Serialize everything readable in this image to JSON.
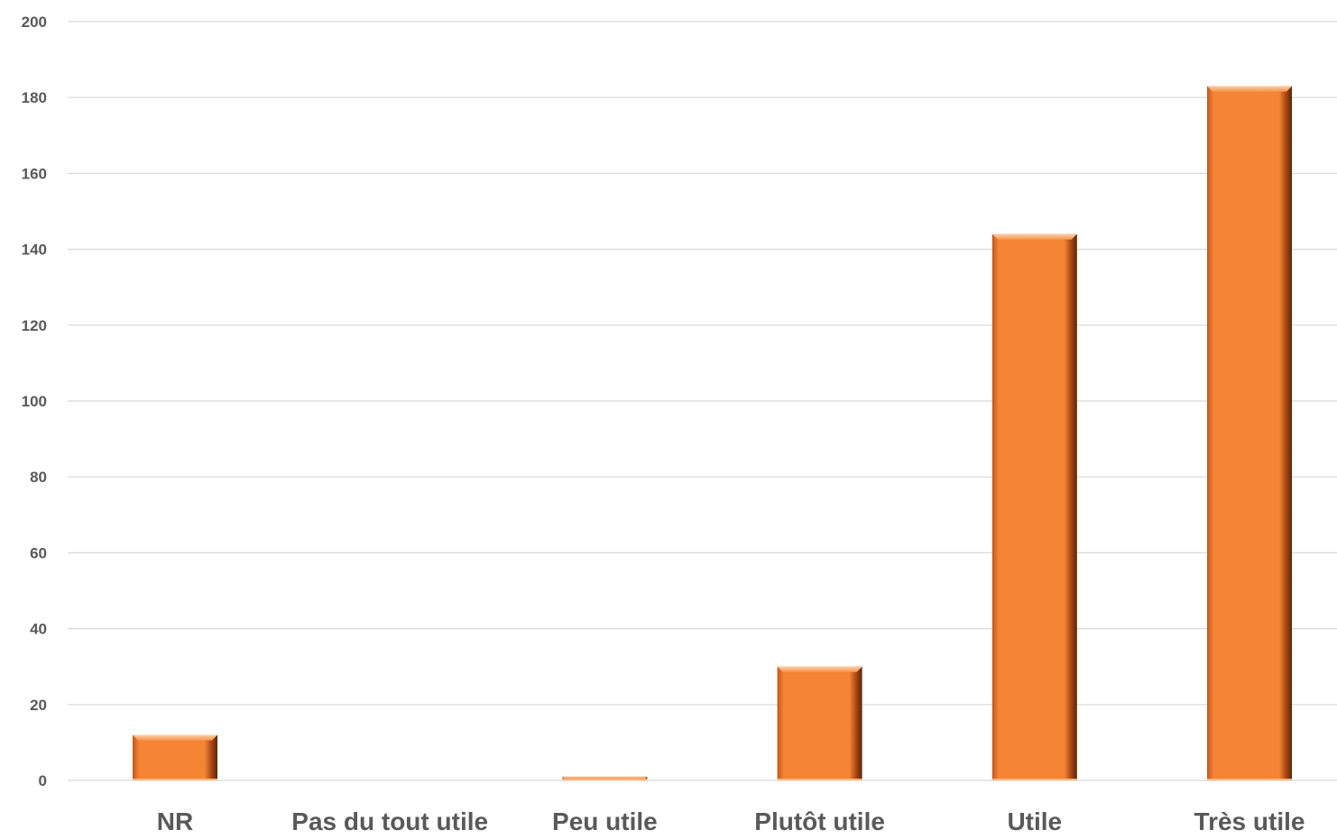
{
  "chart_data": {
    "type": "bar",
    "categories": [
      "NR",
      "Pas du tout utile",
      "Peu utile",
      "Plutôt utile",
      "Utile",
      "Très utile"
    ],
    "values": [
      12,
      0,
      1,
      30,
      144,
      183
    ],
    "yticks": [
      0,
      20,
      40,
      60,
      80,
      100,
      120,
      140,
      160,
      180,
      200
    ],
    "ylim": [
      0,
      200
    ],
    "grid": true,
    "legend": "none",
    "colors": {
      "bar": "#f58535",
      "bar_light": "#fbb57f",
      "bar_dark": "#7a3410",
      "grid": "#d9d9d9",
      "text": "#595959"
    }
  }
}
